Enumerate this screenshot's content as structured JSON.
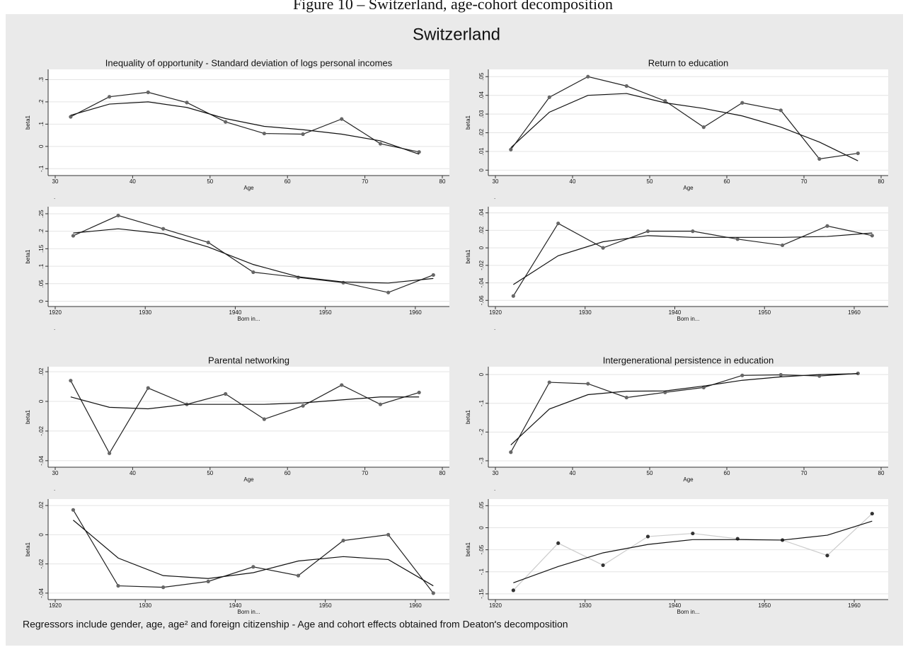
{
  "caption": "Figure 10 – Switzerland, age-cohort decomposition",
  "title": "Switzerland",
  "footnote": "Regressors include gender, age, age² and foreign citizenship - Age and cohort effects obtained from Deaton's decomposition",
  "chart_data": [
    {
      "type": "line",
      "title": "Inequality of opportunity - Standard deviation of logs personal incomes",
      "xlabel": "Age",
      "ylabel": "beta1",
      "note": ".",
      "x": [
        32,
        37,
        42,
        47,
        52,
        57,
        62,
        67,
        72,
        77
      ],
      "series": [
        {
          "color": "#222222",
          "marker_color": "#666666",
          "values": [
            0.133,
            0.223,
            0.243,
            0.197,
            0.11,
            0.058,
            0.055,
            0.123,
            0.012,
            -0.025
          ]
        },
        {
          "color": "#111111",
          "values": [
            0.14,
            0.19,
            0.2,
            0.175,
            0.125,
            0.09,
            0.075,
            0.055,
            0.025,
            -0.035
          ]
        }
      ],
      "xlim": [
        30,
        80
      ],
      "xticks": [
        30,
        40,
        50,
        60,
        70,
        80
      ],
      "ylim": [
        -0.115,
        0.33
      ],
      "yticks": [
        {
          "value": -0.1,
          "label": "-.1"
        },
        0,
        {
          "value": 0.1,
          "label": ".1"
        },
        {
          "value": 0.2,
          "label": ".2"
        },
        {
          "value": 0.3,
          "label": ".3"
        }
      ],
      "grid": true
    },
    {
      "type": "line",
      "title": "Return to education",
      "xlabel": "Age",
      "ylabel": "beta1",
      "note": ".",
      "x": [
        32,
        37,
        42,
        47,
        52,
        57,
        62,
        67,
        72,
        77
      ],
      "series": [
        {
          "color": "#222222",
          "marker_color": "#666666",
          "values": [
            0.011,
            0.039,
            0.05,
            0.045,
            0.037,
            0.023,
            0.036,
            0.032,
            0.006,
            0.009
          ]
        },
        {
          "color": "#111111",
          "values": [
            0.012,
            0.031,
            0.04,
            0.041,
            0.036,
            0.033,
            0.029,
            0.023,
            0.015,
            0.005
          ]
        }
      ],
      "xlim": [
        30,
        80
      ],
      "xticks": [
        30,
        40,
        50,
        60,
        70,
        80
      ],
      "ylim": [
        -0.001,
        0.052
      ],
      "yticks": [
        0,
        {
          "value": 0.01,
          "label": ".01"
        },
        {
          "value": 0.02,
          "label": ".02"
        },
        {
          "value": 0.03,
          "label": ".03"
        },
        {
          "value": 0.04,
          "label": ".04"
        },
        {
          "value": 0.05,
          "label": ".05"
        }
      ],
      "grid": true
    },
    {
      "type": "line",
      "xlabel": "Born in...",
      "ylabel": "beta1",
      "note": ".",
      "x": [
        1922,
        1927,
        1932,
        1937,
        1942,
        1947,
        1952,
        1957,
        1962
      ],
      "series": [
        {
          "color": "#222222",
          "marker_color": "#666666",
          "values": [
            0.187,
            0.245,
            0.207,
            0.168,
            0.083,
            0.068,
            0.053,
            0.025,
            0.075
          ]
        },
        {
          "color": "#111111",
          "values": [
            0.195,
            0.207,
            0.193,
            0.155,
            0.105,
            0.07,
            0.055,
            0.052,
            0.065
          ]
        }
      ],
      "xlim": [
        1920,
        1963
      ],
      "xticks": [
        1920,
        1930,
        1940,
        1950,
        1960
      ],
      "ylim": [
        -0.005,
        0.26
      ],
      "yticks": [
        0,
        {
          "value": 0.05,
          "label": ".05"
        },
        {
          "value": 0.1,
          "label": ".1"
        },
        {
          "value": 0.15,
          "label": ".15"
        },
        {
          "value": 0.2,
          "label": ".2"
        },
        {
          "value": 0.25,
          "label": ".25"
        }
      ],
      "grid": true
    },
    {
      "type": "line",
      "xlabel": "Born in...",
      "ylabel": "beta1",
      "note": ".",
      "x": [
        1922,
        1927,
        1932,
        1937,
        1942,
        1947,
        1952,
        1957,
        1962
      ],
      "series": [
        {
          "color": "#222222",
          "marker_color": "#666666",
          "values": [
            -0.055,
            0.028,
            0.0,
            0.019,
            0.019,
            0.01,
            0.003,
            0.025,
            0.014
          ]
        },
        {
          "color": "#111111",
          "values": [
            -0.042,
            -0.009,
            0.007,
            0.014,
            0.012,
            0.012,
            0.012,
            0.013,
            0.017
          ]
        }
      ],
      "xlim": [
        1920,
        1963
      ],
      "xticks": [
        1920,
        1930,
        1940,
        1950,
        1960
      ],
      "ylim": [
        -0.063,
        0.043
      ],
      "yticks": [
        {
          "value": -0.06,
          "label": "-.06"
        },
        {
          "value": -0.04,
          "label": "-.04"
        },
        {
          "value": -0.02,
          "label": "-.02"
        },
        0,
        {
          "value": 0.02,
          "label": ".02"
        },
        {
          "value": 0.04,
          "label": ".04"
        }
      ],
      "grid": true
    },
    {
      "type": "line",
      "title": "Parental networking",
      "xlabel": "Age",
      "ylabel": "beta1",
      "note": ".",
      "x": [
        32,
        37,
        42,
        47,
        52,
        57,
        62,
        67,
        72,
        77
      ],
      "series": [
        {
          "color": "#222222",
          "marker_color": "#666666",
          "values": [
            0.014,
            -0.035,
            0.009,
            -0.002,
            0.005,
            -0.012,
            -0.003,
            0.011,
            -0.002,
            0.006
          ]
        },
        {
          "color": "#111111",
          "values": [
            0.003,
            -0.004,
            -0.005,
            -0.002,
            -0.002,
            -0.002,
            -0.001,
            0.001,
            0.003,
            0.003
          ]
        }
      ],
      "xlim": [
        30,
        80
      ],
      "xticks": [
        30,
        40,
        50,
        60,
        70,
        80
      ],
      "ylim": [
        -0.042,
        0.021
      ],
      "yticks": [
        {
          "value": -0.04,
          "label": "-.04"
        },
        {
          "value": -0.02,
          "label": "-.02"
        },
        0,
        {
          "value": 0.02,
          "label": ".02"
        }
      ],
      "grid": true
    },
    {
      "type": "line",
      "title": "Intergenerational persistence in education",
      "xlabel": "Age",
      "ylabel": "beta1",
      "note": ".",
      "x": [
        32,
        37,
        42,
        47,
        52,
        57,
        62,
        67,
        72,
        77
      ],
      "series": [
        {
          "color": "#222222",
          "marker_color": "#666666",
          "values": [
            -0.27,
            -0.027,
            -0.032,
            -0.08,
            -0.062,
            -0.045,
            -0.003,
            -0.001,
            -0.005,
            0.004
          ]
        },
        {
          "color": "#111111",
          "values": [
            -0.245,
            -0.12,
            -0.07,
            -0.058,
            -0.057,
            -0.04,
            -0.02,
            -0.008,
            0,
            0.003
          ]
        }
      ],
      "xlim": [
        30,
        80
      ],
      "xticks": [
        30,
        40,
        50,
        60,
        70,
        80
      ],
      "ylim": [
        -0.31,
        0.015
      ],
      "yticks": [
        {
          "value": -0.3,
          "label": "-.3"
        },
        {
          "value": -0.2,
          "label": "-.2"
        },
        {
          "value": -0.1,
          "label": "-.1"
        },
        0
      ],
      "grid": true
    },
    {
      "type": "line",
      "xlabel": "Born in...",
      "ylabel": "beta1",
      "note": ".",
      "x": [
        1922,
        1927,
        1932,
        1937,
        1942,
        1947,
        1952,
        1957,
        1962
      ],
      "series": [
        {
          "color": "#222222",
          "marker_color": "#666666",
          "values": [
            0.017,
            -0.035,
            -0.036,
            -0.032,
            -0.022,
            -0.028,
            -0.004,
            0.0,
            -0.04
          ]
        },
        {
          "color": "#111111",
          "values": [
            0.01,
            -0.016,
            -0.028,
            -0.03,
            -0.026,
            -0.018,
            -0.015,
            -0.017,
            -0.035
          ]
        }
      ],
      "xlim": [
        1920,
        1963
      ],
      "xticks": [
        1920,
        1930,
        1940,
        1950,
        1960
      ],
      "ylim": [
        -0.042,
        0.022
      ],
      "yticks": [
        {
          "value": -0.04,
          "label": "-.04"
        },
        {
          "value": -0.02,
          "label": "-.02"
        },
        0,
        {
          "value": 0.02,
          "label": ".02"
        }
      ],
      "grid": true
    },
    {
      "type": "line",
      "xlabel": "Born in...",
      "ylabel": "beta1",
      "note": ".",
      "x": [
        1922,
        1927,
        1932,
        1937,
        1942,
        1947,
        1952,
        1957,
        1962
      ],
      "series": [
        {
          "color": "#cccccc",
          "marker_color": "#333333",
          "values": [
            -0.142,
            -0.035,
            -0.085,
            -0.02,
            -0.013,
            -0.025,
            -0.028,
            -0.063,
            0.032
          ]
        },
        {
          "color": "#111111",
          "values": [
            -0.125,
            -0.088,
            -0.057,
            -0.038,
            -0.027,
            -0.027,
            -0.028,
            -0.017,
            0.015
          ]
        }
      ],
      "xlim": [
        1920,
        1963
      ],
      "xticks": [
        1920,
        1930,
        1940,
        1950,
        1960
      ],
      "ylim": [
        -0.155,
        0.057
      ],
      "yticks": [
        {
          "value": -0.15,
          "label": "-.15"
        },
        {
          "value": -0.1,
          "label": "-.1"
        },
        {
          "value": -0.05,
          "label": "-.05"
        },
        0,
        {
          "value": 0.05,
          "label": ".05"
        }
      ],
      "grid": true
    }
  ]
}
